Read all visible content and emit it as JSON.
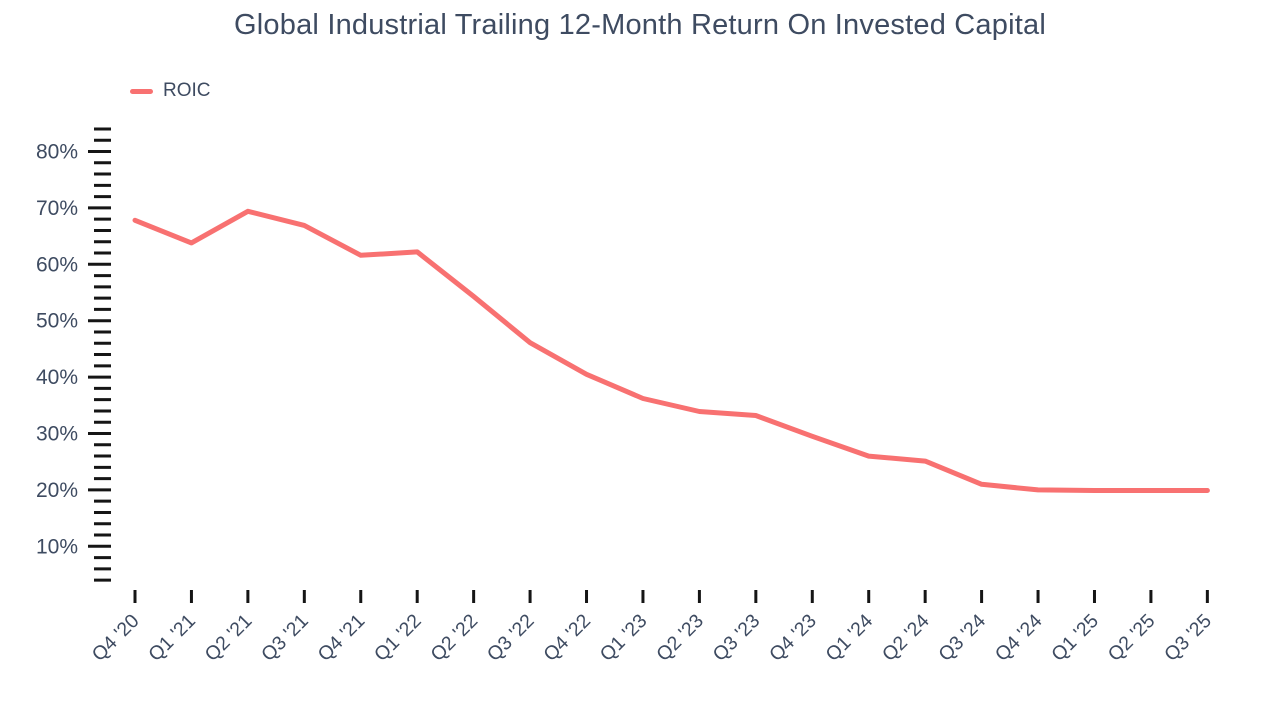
{
  "colors": {
    "line": "#f87171",
    "text": "#3e4b61",
    "tick": "#151515",
    "background": "#ffffff"
  },
  "legend": {
    "items": [
      {
        "label": "ROIC",
        "swatch": "line-dash"
      }
    ]
  },
  "chart_data": {
    "type": "line",
    "title": "Global Industrial Trailing 12-Month Return On Invested Capital",
    "xlabel": "",
    "ylabel": "",
    "categories": [
      "Q4 '20",
      "Q1 '21",
      "Q2 '21",
      "Q3 '21",
      "Q4 '21",
      "Q1 '22",
      "Q2 '22",
      "Q3 '22",
      "Q4 '22",
      "Q1 '23",
      "Q2 '23",
      "Q3 '23",
      "Q4 '23",
      "Q1 '24",
      "Q2 '24",
      "Q3 '24",
      "Q4 '24",
      "Q1 '25",
      "Q2 '25",
      "Q3 '25"
    ],
    "series": [
      {
        "name": "ROIC",
        "color": "#f87171",
        "values": [
          67.8,
          63.8,
          69.4,
          66.9,
          61.6,
          62.2,
          54.3,
          46.1,
          40.5,
          36.2,
          33.9,
          33.2,
          29.5,
          26.0,
          25.1,
          21.0,
          20.0,
          19.9,
          19.9,
          19.9
        ]
      }
    ],
    "y_unit": "%",
    "ylim": [
      3,
      85
    ],
    "y_major_ticks": [
      10,
      20,
      30,
      40,
      50,
      60,
      70,
      80
    ],
    "y_tick_labels": [
      "10%",
      "20%",
      "30%",
      "40%",
      "50%",
      "60%",
      "70%",
      "80%"
    ],
    "y_minor_step": 2,
    "y_minor_range": [
      4,
      84
    ],
    "grid": "off",
    "legend_position": "top-left",
    "x_label_rotation_deg": -45
  }
}
